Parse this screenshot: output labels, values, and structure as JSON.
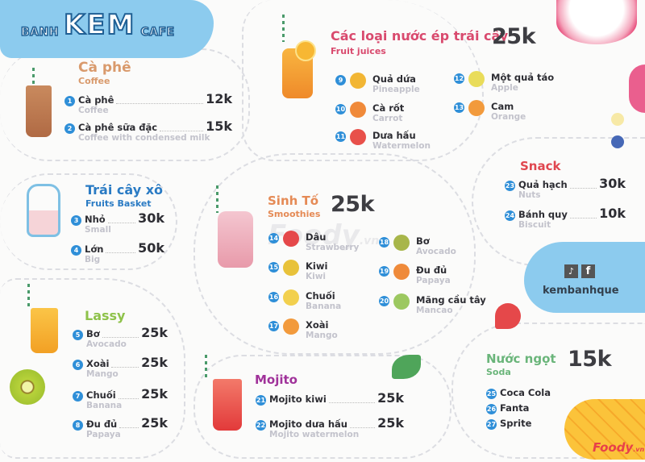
{
  "brand": {
    "left": "BANH",
    "main": "KEM",
    "right": "CAFE",
    "color": "#8ccbee"
  },
  "coffee": {
    "title": "Cà phê",
    "subtitle": "Coffee",
    "color": "#d99a6c",
    "items": [
      {
        "num": "1",
        "name": "Cà phê",
        "en": "Coffee",
        "price": "12k"
      },
      {
        "num": "2",
        "name": "Cà phê sữa đặc",
        "en": "Coffee with condensed milk",
        "price": "15k"
      }
    ]
  },
  "juices": {
    "title": "Các loại nước ép trái cây",
    "subtitle": "Fruit juices",
    "price": "25k",
    "color": "#d94a6e",
    "items": [
      {
        "num": "9",
        "name": "Quả dứa",
        "en": "Pineapple",
        "icon": "pineapple-icon",
        "icon_color": "#f2b634"
      },
      {
        "num": "10",
        "name": "Cà rốt",
        "en": "Carrot",
        "icon": "carrot-icon",
        "icon_color": "#f08a3a"
      },
      {
        "num": "11",
        "name": "Dưa hấu",
        "en": "Watermelon",
        "icon": "watermelon-icon",
        "icon_color": "#e8504a"
      },
      {
        "num": "12",
        "name": "Một quả táo",
        "en": "Apple",
        "icon": "apple-icon",
        "icon_color": "#e9dc5a"
      },
      {
        "num": "13",
        "name": "Cam",
        "en": "Orange",
        "icon": "orange-icon",
        "icon_color": "#f29a3c"
      }
    ]
  },
  "basket": {
    "title": "Trái cây xô",
    "subtitle": "Fruits Basket",
    "color": "#2a7bc4",
    "items": [
      {
        "num": "3",
        "name": "Nhỏ",
        "en": "Small",
        "price": "30k"
      },
      {
        "num": "4",
        "name": "Lớn",
        "en": "Big",
        "price": "50k"
      }
    ]
  },
  "smoothies": {
    "title": "Sinh Tố",
    "subtitle": "Smoothies",
    "price": "25k",
    "color": "#e58a55",
    "items": [
      {
        "num": "14",
        "name": "Dâu",
        "en": "Strawberry",
        "icon": "strawberry-icon",
        "icon_color": "#e5484a"
      },
      {
        "num": "15",
        "name": "Kiwi",
        "en": "Kiwi",
        "icon": "kiwi-icon",
        "icon_color": "#e8c23a"
      },
      {
        "num": "16",
        "name": "Chuối",
        "en": "Banana",
        "icon": "banana-icon",
        "icon_color": "#f2d04e"
      },
      {
        "num": "17",
        "name": "Xoài",
        "en": "Mango",
        "icon": "mango-icon",
        "icon_color": "#f29a3c"
      },
      {
        "num": "18",
        "name": "Bơ",
        "en": "Avocado",
        "icon": "avocado-icon",
        "icon_color": "#a8b64a"
      },
      {
        "num": "19",
        "name": "Đu đủ",
        "en": "Papaya",
        "icon": "papaya-icon",
        "icon_color": "#ef8a3a"
      },
      {
        "num": "20",
        "name": "Mãng cầu tây",
        "en": "Mancao",
        "icon": "soursop-icon",
        "icon_color": "#9cc860"
      }
    ]
  },
  "snack": {
    "title": "Snack",
    "color": "#e0464f",
    "items": [
      {
        "num": "23",
        "name": "Quả hạch",
        "en": "Nuts",
        "price": "30k"
      },
      {
        "num": "24",
        "name": "Bánh quy",
        "en": "Biscuit",
        "price": "10k"
      }
    ]
  },
  "social": {
    "handle": "kembanhque",
    "icons": [
      "tiktok-icon",
      "facebook-icon"
    ]
  },
  "lassy": {
    "title": "Lassy",
    "color": "#8ec24a",
    "items": [
      {
        "num": "5",
        "name": "Bơ",
        "en": "Avocado",
        "price": "25k"
      },
      {
        "num": "6",
        "name": "Xoài",
        "en": "Mango",
        "price": "25k"
      },
      {
        "num": "7",
        "name": "Chuối",
        "en": "Banana",
        "price": "25k"
      },
      {
        "num": "8",
        "name": "Đu đủ",
        "en": "Papaya",
        "price": "25k"
      }
    ]
  },
  "mojito": {
    "title": "Mojito",
    "color": "#a0329a",
    "items": [
      {
        "num": "21",
        "name": "Mojito kiwi",
        "en": "",
        "price": "25k"
      },
      {
        "num": "22",
        "name": "Mojito dưa hấu",
        "en": "Mojito watermelon",
        "price": "25k"
      }
    ]
  },
  "soda": {
    "title": "Nước ngọt",
    "subtitle": "Soda",
    "price": "15k",
    "color": "#6ab57a",
    "items": [
      {
        "num": "25",
        "name": "Coca Cola"
      },
      {
        "num": "26",
        "name": "Fanta"
      },
      {
        "num": "27",
        "name": "Sprite"
      }
    ]
  },
  "watermark": {
    "text": "Foody",
    "suffix": ".vn"
  }
}
